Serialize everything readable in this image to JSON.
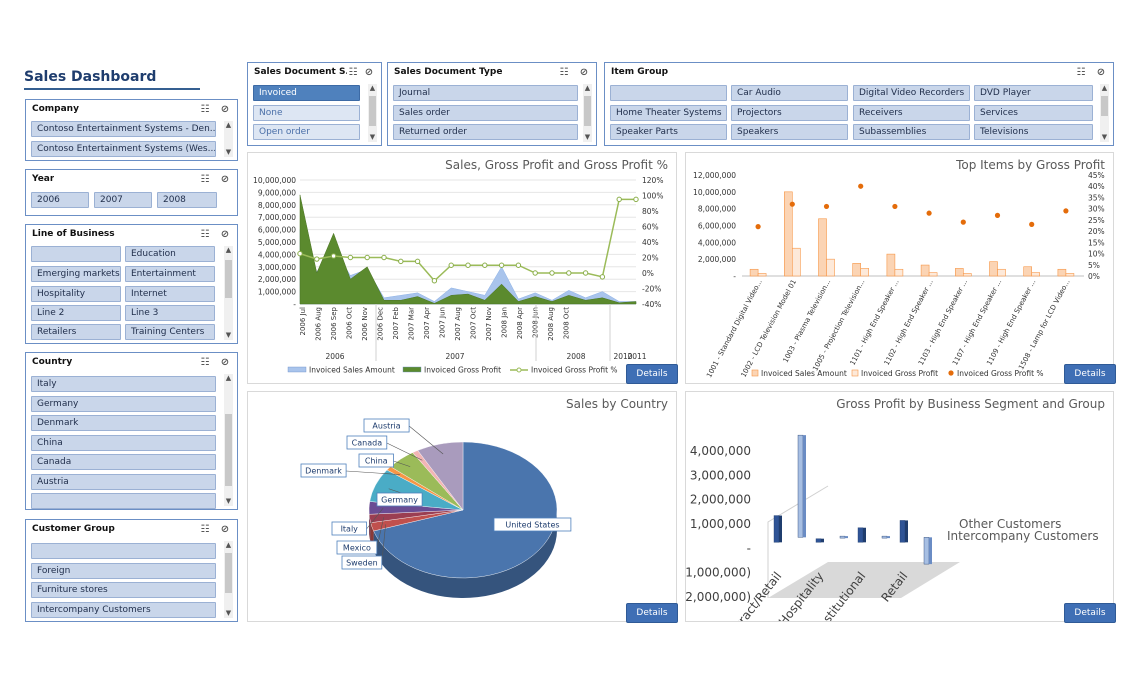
{
  "dashboard": {
    "title": "Sales Dashboard"
  },
  "slicers": {
    "company": {
      "title": "Company",
      "items": [
        "Contoso Entertainment Systems - Den...",
        "Contoso Entertainment Systems (Wes..."
      ]
    },
    "year": {
      "title": "Year",
      "items": [
        "2006",
        "2007",
        "2008"
      ]
    },
    "line_of_business": {
      "title": "Line of Business",
      "items": [
        "",
        "Education",
        "Emerging markets",
        "Entertainment",
        "Hospitality",
        "Internet",
        "Line 2",
        "Line 3",
        "Retailers",
        "Training Centers"
      ]
    },
    "country": {
      "title": "Country",
      "items": [
        "Italy",
        "Germany",
        "Denmark",
        "China",
        "Canada",
        "Austria",
        ""
      ]
    },
    "customer_group": {
      "title": "Customer Group",
      "items": [
        "",
        "Foreign",
        "Furniture stores",
        "Intercompany Customers"
      ]
    },
    "sales_document_status": {
      "title": "Sales Document S...",
      "items": [
        "Invoiced",
        "None",
        "Open order"
      ]
    },
    "sales_document_type": {
      "title": "Sales Document Type",
      "items": [
        "Journal",
        "Sales order",
        "Returned order"
      ]
    },
    "item_group": {
      "title": "Item Group",
      "items": [
        "",
        "Car Audio",
        "Digital Video Recorders",
        "DVD Player",
        "Home Theater Systems",
        "Projectors",
        "Receivers",
        "Services",
        "Speaker Parts",
        "Speakers",
        "Subassemblies",
        "Televisions"
      ]
    }
  },
  "buttons": {
    "details": "Details"
  },
  "chart_data": [
    {
      "type": "line",
      "title": "Sales, Gross Profit and Gross Profit %",
      "left_ticks": [
        "10,000,000",
        "9,000,000",
        "8,000,000",
        "7,000,000",
        "6,000,000",
        "5,000,000",
        "4,000,000",
        "3,000,000",
        "2,000,000",
        "1,000,000",
        "-"
      ],
      "right_ticks": [
        "120%",
        "100%",
        "80%",
        "60%",
        "40%",
        "20%",
        "0%",
        "-20%",
        "-40%"
      ],
      "ylim": [
        0,
        10000000
      ],
      "y2lim": [
        -40,
        120
      ],
      "x_labels": [
        "2006 Jul",
        "2006 Aug",
        "2006 Sep",
        "2006 Oct",
        "2006 Nov",
        "2006 Dec",
        "2007 Feb",
        "2007 Mar",
        "2007 Apr",
        "2007 Jun",
        "2007 Aug",
        "2007 Oct",
        "2007 Nov",
        "2008 Jan",
        "2008 Apr",
        "2008 Jun",
        "2008 Aug",
        "2008 Oct"
      ],
      "year_labels": [
        "2006",
        "2007",
        "2008",
        "2010",
        "2011"
      ],
      "series": [
        {
          "name": "Invoiced Sales Amount",
          "values": [
            6000000,
            2600000,
            4500000,
            2300000,
            2800000,
            500000,
            700000,
            900000,
            200000,
            1300000,
            1000000,
            700000,
            3000000,
            400000,
            900000,
            300000,
            1100000,
            500000,
            1000000,
            200000,
            200000
          ]
        },
        {
          "name": "Invoiced Gross Profit",
          "values": [
            8800000,
            2500000,
            5700000,
            2000000,
            3000000,
            300000,
            300000,
            600000,
            50000,
            700000,
            800000,
            300000,
            1600000,
            200000,
            600000,
            200000,
            700000,
            300000,
            500000,
            100000,
            200000
          ]
        },
        {
          "name": "Invoiced Gross Profit %",
          "values": [
            25,
            18,
            22,
            20,
            20,
            20,
            15,
            15,
            -10,
            10,
            10,
            10,
            10,
            10,
            0,
            0,
            0,
            0,
            -5,
            95,
            95
          ]
        }
      ]
    },
    {
      "type": "bar",
      "title": "Top Items by Gross Profit",
      "categories": [
        "1001 - Standard Digital Video...",
        "1002 - LCD Television Model 01",
        "1003 - Plasma Television...",
        "1005 - Projection Television...",
        "1101 - High End Speaker ...",
        "1102 - High End Speaker ...",
        "1103 - High End Speaker ...",
        "1107 - High End Speaker ...",
        "1109 - High End Speaker ...",
        "1508 - Lamp for LCD Video..."
      ],
      "left_ticks": [
        "12,000,000",
        "10,000,000",
        "8,000,000",
        "6,000,000",
        "4,000,000",
        "2,000,000",
        "-"
      ],
      "right_ticks": [
        "45%",
        "40%",
        "35%",
        "30%",
        "25%",
        "20%",
        "15%",
        "10%",
        "5%",
        "0%"
      ],
      "ylim": [
        0,
        12000000
      ],
      "y2lim": [
        0,
        45
      ],
      "series": [
        {
          "name": "Invoiced Sales Amount",
          "values": [
            800000,
            10000000,
            6800000,
            1500000,
            2600000,
            1300000,
            900000,
            1700000,
            1100000,
            800000
          ]
        },
        {
          "name": "Invoiced Gross Profit",
          "values": [
            300000,
            3300000,
            2000000,
            900000,
            800000,
            400000,
            300000,
            800000,
            400000,
            300000
          ]
        },
        {
          "name": "Invoiced Gross Profit %",
          "values": [
            22,
            32,
            31,
            40,
            31,
            28,
            24,
            27,
            23,
            29
          ]
        }
      ]
    },
    {
      "type": "pie",
      "title": "Sales by Country",
      "slices": [
        {
          "label": "United States",
          "value": 70,
          "color": "#4a75ad"
        },
        {
          "label": "Sweden",
          "value": 2,
          "color": "#c0504d"
        },
        {
          "label": "Mexico",
          "value": 2,
          "color": "#9b3e52"
        },
        {
          "label": "Italy",
          "value": 3,
          "color": "#6a4c93"
        },
        {
          "label": "Germany",
          "value": 8,
          "color": "#4aacc6"
        },
        {
          "label": "Denmark",
          "value": 1,
          "color": "#f79646"
        },
        {
          "label": "China",
          "value": 5,
          "color": "#9bbb59"
        },
        {
          "label": "Canada",
          "value": 1,
          "color": "#f2b5b5"
        },
        {
          "label": "Austria",
          "value": 8,
          "color": "#a99bbd"
        }
      ]
    },
    {
      "type": "bar",
      "title": "Gross Profit by Business Segment and Group",
      "categories": [
        "Contract/Retail",
        "Hospitality",
        "Institutional",
        "Retail"
      ],
      "left_ticks": [
        "4,000,000",
        "3,000,000",
        "2,000,000",
        "1,000,000",
        "-",
        "(1,000,000)",
        "(2,000,000)"
      ],
      "ylim": [
        -2000000,
        4000000
      ],
      "series": [
        {
          "name": "Other Customers",
          "values": [
            1100000,
            150000,
            600000,
            900000
          ]
        },
        {
          "name": "Intercompany Customers",
          "values": [
            4200000,
            50000,
            50000,
            -1100000
          ]
        }
      ]
    }
  ]
}
